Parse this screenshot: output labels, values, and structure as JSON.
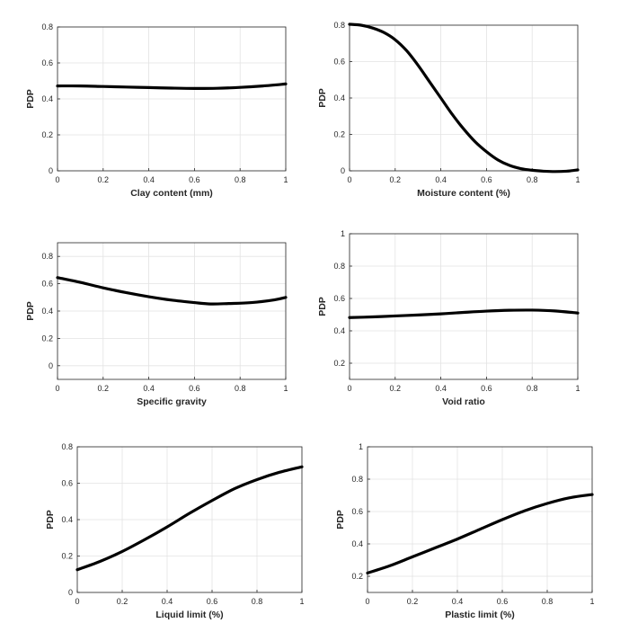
{
  "colors": {
    "line": "#000000",
    "grid": "#e3e3e3",
    "axis": "#262626",
    "background": "#ffffff"
  },
  "chart_data": [
    {
      "id": "clay",
      "type": "line",
      "title": "",
      "xlabel": "Clay content (mm)",
      "ylabel": "PDP",
      "xlim": [
        0,
        1
      ],
      "ylim": [
        0,
        0.8
      ],
      "xticks": [
        "0",
        "0.2",
        "0.4",
        "0.6",
        "0.8",
        "1"
      ],
      "yticks": [
        "0",
        "0.2",
        "0.4",
        "0.6",
        "0.8"
      ],
      "grid": true,
      "series": [
        {
          "name": "PDP",
          "x": [
            0,
            0.1,
            0.2,
            0.3,
            0.4,
            0.5,
            0.6,
            0.7,
            0.8,
            0.9,
            1.0
          ],
          "y": [
            0.472,
            0.472,
            0.469,
            0.466,
            0.463,
            0.46,
            0.458,
            0.459,
            0.464,
            0.472,
            0.483
          ]
        }
      ]
    },
    {
      "id": "moisture",
      "type": "line",
      "title": "",
      "xlabel": "Moisture content (%)",
      "ylabel": "PDP",
      "xlim": [
        0,
        1
      ],
      "ylim": [
        0,
        0.8
      ],
      "xticks": [
        "0",
        "0.2",
        "0.4",
        "0.6",
        "0.8",
        "1"
      ],
      "yticks": [
        "0",
        "0.2",
        "0.4",
        "0.6",
        "0.8"
      ],
      "grid": true,
      "series": [
        {
          "name": "PDP",
          "x": [
            0,
            0.05,
            0.1,
            0.15,
            0.2,
            0.25,
            0.3,
            0.35,
            0.4,
            0.45,
            0.5,
            0.55,
            0.6,
            0.65,
            0.7,
            0.75,
            0.8,
            0.85,
            0.9,
            0.95,
            1.0
          ],
          "y": [
            0.805,
            0.8,
            0.785,
            0.76,
            0.72,
            0.66,
            0.58,
            0.49,
            0.4,
            0.31,
            0.23,
            0.16,
            0.105,
            0.06,
            0.03,
            0.012,
            0.003,
            -0.002,
            -0.004,
            -0.002,
            0.005
          ]
        }
      ]
    },
    {
      "id": "gravity",
      "type": "line",
      "title": "",
      "xlabel": "Specific gravity",
      "ylabel": "PDP",
      "xlim": [
        0,
        1
      ],
      "ylim": [
        -0.1,
        0.9
      ],
      "xticks": [
        "0",
        "0.2",
        "0.4",
        "0.6",
        "0.8",
        "1"
      ],
      "yticks": [
        "0",
        "0.2",
        "0.4",
        "0.6",
        "0.8"
      ],
      "grid": true,
      "series": [
        {
          "name": "PDP",
          "x": [
            0,
            0.1,
            0.2,
            0.3,
            0.4,
            0.5,
            0.6,
            0.67,
            0.75,
            0.85,
            0.95,
            1.0
          ],
          "y": [
            0.645,
            0.61,
            0.57,
            0.535,
            0.505,
            0.48,
            0.462,
            0.452,
            0.455,
            0.462,
            0.482,
            0.5
          ]
        }
      ]
    },
    {
      "id": "void",
      "type": "line",
      "title": "",
      "xlabel": "Void ratio",
      "ylabel": "PDP",
      "xlim": [
        0,
        1
      ],
      "ylim": [
        0.1,
        1.0
      ],
      "xticks": [
        "0",
        "0.2",
        "0.4",
        "0.6",
        "0.8",
        "1"
      ],
      "yticks": [
        "0.2",
        "0.4",
        "0.6",
        "0.8",
        "1"
      ],
      "grid": true,
      "series": [
        {
          "name": "PDP",
          "x": [
            0,
            0.1,
            0.2,
            0.3,
            0.4,
            0.5,
            0.6,
            0.7,
            0.8,
            0.9,
            1.0
          ],
          "y": [
            0.482,
            0.486,
            0.492,
            0.498,
            0.505,
            0.514,
            0.522,
            0.527,
            0.528,
            0.523,
            0.51
          ]
        }
      ]
    },
    {
      "id": "liquid",
      "type": "line",
      "title": "",
      "xlabel": "Liquid limit (%)",
      "ylabel": "PDP",
      "xlim": [
        0,
        1
      ],
      "ylim": [
        0,
        0.8
      ],
      "xticks": [
        "0",
        "0.2",
        "0.4",
        "0.6",
        "0.8",
        "1"
      ],
      "yticks": [
        "0",
        "0.2",
        "0.4",
        "0.6",
        "0.8"
      ],
      "grid": true,
      "series": [
        {
          "name": "PDP",
          "x": [
            0,
            0.1,
            0.2,
            0.3,
            0.4,
            0.5,
            0.6,
            0.7,
            0.8,
            0.9,
            1.0
          ],
          "y": [
            0.125,
            0.17,
            0.225,
            0.29,
            0.36,
            0.435,
            0.505,
            0.57,
            0.62,
            0.66,
            0.69
          ]
        }
      ]
    },
    {
      "id": "plastic",
      "type": "line",
      "title": "",
      "xlabel": "Plastic limit (%)",
      "ylabel": "PDP",
      "xlim": [
        0,
        1
      ],
      "ylim": [
        0.1,
        1.0
      ],
      "xticks": [
        "0",
        "0.2",
        "0.4",
        "0.6",
        "0.8",
        "1"
      ],
      "yticks": [
        "0.2",
        "0.4",
        "0.6",
        "0.8",
        "1"
      ],
      "grid": true,
      "series": [
        {
          "name": "PDP",
          "x": [
            0,
            0.1,
            0.2,
            0.3,
            0.4,
            0.5,
            0.6,
            0.7,
            0.8,
            0.9,
            1.0
          ],
          "y": [
            0.22,
            0.265,
            0.32,
            0.375,
            0.43,
            0.49,
            0.55,
            0.605,
            0.65,
            0.685,
            0.705
          ]
        }
      ]
    }
  ]
}
